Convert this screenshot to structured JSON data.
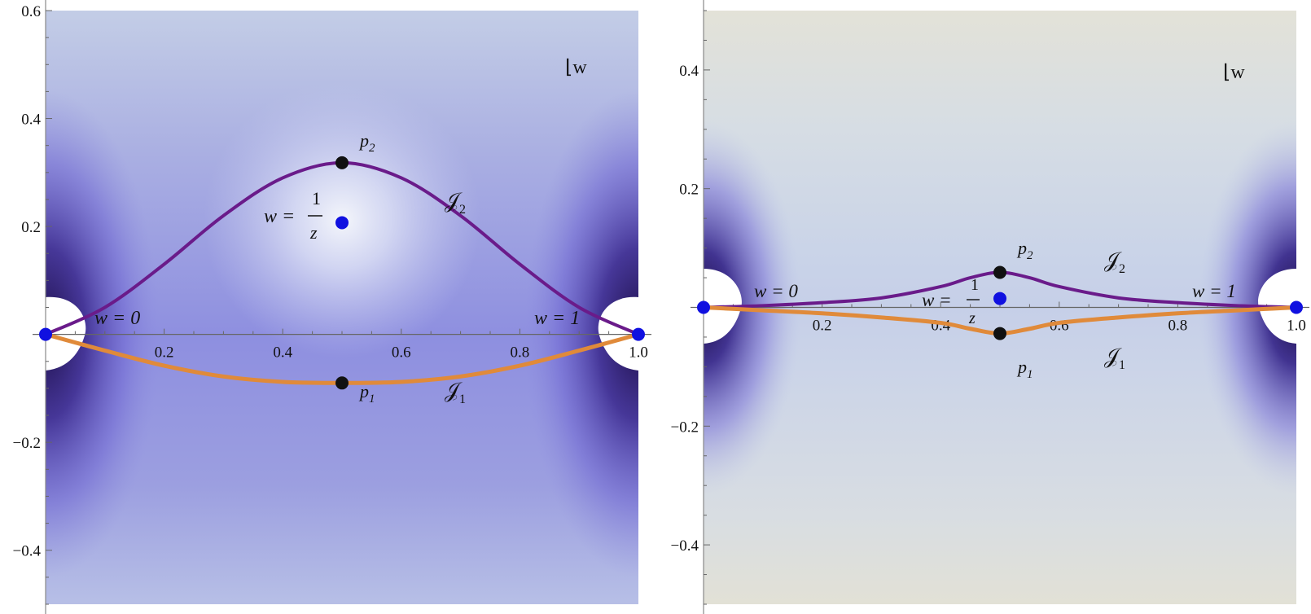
{
  "chart_data": [
    {
      "type": "line",
      "panel": "left",
      "corner_label": "⌊w",
      "background": "density shading, purple",
      "xlim": [
        0,
        1
      ],
      "ylim": [
        -0.5,
        0.6
      ],
      "xticks": [
        0.2,
        0.4,
        0.6,
        0.8,
        1.0
      ],
      "xtick_labels": [
        "0.2",
        "0.4",
        "0.6",
        "0.8",
        "1.0"
      ],
      "yticks": [
        -0.4,
        -0.2,
        0.2,
        0.4,
        0.6
      ],
      "ytick_labels": [
        "−0.4",
        "−0.2",
        "0.2",
        "0.4",
        "0.6"
      ],
      "series": [
        {
          "name": "J2",
          "color": "#6a1b8a",
          "x": [
            0,
            0.1,
            0.2,
            0.3,
            0.4,
            0.5,
            0.6,
            0.7,
            0.8,
            0.9,
            1.0
          ],
          "y": [
            0,
            0.05,
            0.13,
            0.22,
            0.29,
            0.318,
            0.29,
            0.22,
            0.13,
            0.05,
            0
          ]
        },
        {
          "name": "J1",
          "color": "#e08a3a",
          "x": [
            0,
            0.1,
            0.2,
            0.3,
            0.4,
            0.5,
            0.6,
            0.7,
            0.8,
            0.9,
            1.0
          ],
          "y": [
            0,
            -0.03,
            -0.058,
            -0.078,
            -0.088,
            -0.09,
            -0.088,
            -0.078,
            -0.058,
            -0.03,
            0
          ]
        }
      ],
      "points": [
        {
          "label": "w = 0",
          "x": 0,
          "y": 0,
          "color": "#1010e0"
        },
        {
          "label": "w = 1",
          "x": 1,
          "y": 0,
          "color": "#1010e0"
        },
        {
          "label": "w = 1/z",
          "x": 0.5,
          "y": 0.207,
          "color": "#1010e0"
        },
        {
          "label": "p2",
          "x": 0.5,
          "y": 0.318,
          "color": "#111111"
        },
        {
          "label": "p1",
          "x": 0.5,
          "y": -0.09,
          "color": "#111111"
        }
      ]
    },
    {
      "type": "line",
      "panel": "right",
      "corner_label": "⌊w",
      "background": "density shading, pale blue with purple near endpoints",
      "xlim": [
        0,
        1
      ],
      "ylim": [
        -0.5,
        0.5
      ],
      "xticks": [
        0.2,
        0.4,
        0.6,
        0.8,
        1.0
      ],
      "xtick_labels": [
        "0.2",
        "0.4",
        "0.6",
        "0.8",
        "1.0"
      ],
      "yticks": [
        -0.4,
        -0.2,
        0.2,
        0.4
      ],
      "ytick_labels": [
        "−0.4",
        "−0.2",
        "0.2",
        "0.4"
      ],
      "series": [
        {
          "name": "J2",
          "color": "#6a1b8a",
          "x": [
            0,
            0.1,
            0.2,
            0.3,
            0.4,
            0.45,
            0.5,
            0.55,
            0.6,
            0.7,
            0.8,
            0.9,
            1.0
          ],
          "y": [
            0,
            0.003,
            0.008,
            0.016,
            0.035,
            0.05,
            0.059,
            0.05,
            0.035,
            0.016,
            0.008,
            0.003,
            0
          ]
        },
        {
          "name": "J1",
          "color": "#e08a3a",
          "x": [
            0,
            0.1,
            0.2,
            0.3,
            0.4,
            0.45,
            0.5,
            0.55,
            0.6,
            0.7,
            0.8,
            0.9,
            1.0
          ],
          "y": [
            0,
            -0.005,
            -0.01,
            -0.017,
            -0.026,
            -0.036,
            -0.044,
            -0.036,
            -0.026,
            -0.017,
            -0.01,
            -0.005,
            0
          ]
        }
      ],
      "points": [
        {
          "label": "w = 0",
          "x": 0,
          "y": 0,
          "color": "#1010e0"
        },
        {
          "label": "w = 1",
          "x": 1,
          "y": 0,
          "color": "#1010e0"
        },
        {
          "label": "w = 1/z",
          "x": 0.5,
          "y": 0.015,
          "color": "#1010e0"
        },
        {
          "label": "p2",
          "x": 0.5,
          "y": 0.059,
          "color": "#111111"
        },
        {
          "label": "p1",
          "x": 0.5,
          "y": -0.044,
          "color": "#111111"
        }
      ]
    }
  ],
  "labels": {
    "left": {
      "w0": "w = 0",
      "w1": "w = 1",
      "wz_lhs": "w =",
      "wz_num": "1",
      "wz_den": "z",
      "p2": "p",
      "p2_sub": "2",
      "p1": "p",
      "p1_sub": "1",
      "J2": "𝒥",
      "J2_sub": "2",
      "J1": "𝒥",
      "J1_sub": "1",
      "corner": "⌊w"
    },
    "right": {
      "w0": "w = 0",
      "w1": "w = 1",
      "wz_lhs": "w =",
      "wz_num": "1",
      "wz_den": "z",
      "p2": "p",
      "p2_sub": "2",
      "p1": "p",
      "p1_sub": "1",
      "J2": "𝒥",
      "J2_sub": "2",
      "J1": "𝒥",
      "J1_sub": "1",
      "corner": "⌊w"
    }
  }
}
